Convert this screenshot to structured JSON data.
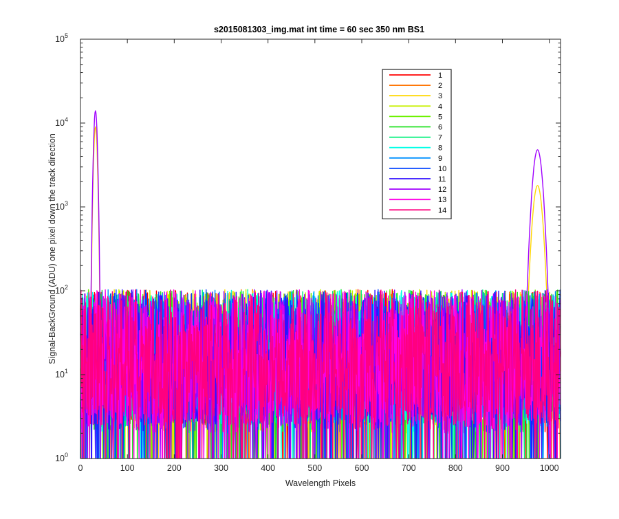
{
  "figure": {
    "background": "#ffffff"
  },
  "chart_data": {
    "type": "line",
    "title": "s2015081303_img.mat int time = 60 sec  350 nm BS1",
    "xlabel": "Wavelength Pixels",
    "ylabel": "Signal-BackGround (ADU) one pixel down the track direction",
    "xlim": [
      0,
      1024
    ],
    "ylim": [
      1,
      100000
    ],
    "yscale": "log",
    "x_ticks": [
      0,
      100,
      200,
      300,
      400,
      500,
      600,
      700,
      800,
      900,
      1000
    ],
    "y_ticks": [
      {
        "value": 1,
        "base": "10",
        "exp": "0"
      },
      {
        "value": 10,
        "base": "10",
        "exp": "1"
      },
      {
        "value": 100,
        "base": "10",
        "exp": "2"
      },
      {
        "value": 1000,
        "base": "10",
        "exp": "3"
      },
      {
        "value": 10000,
        "base": "10",
        "exp": "4"
      },
      {
        "value": 100000,
        "base": "10",
        "exp": "5"
      }
    ],
    "grid": false,
    "legend_position": "top-right",
    "noise_floor_range": [
      2,
      100
    ],
    "peaks": [
      {
        "name": "left line",
        "x_center": 32,
        "width": 3,
        "value_series_12": 14000,
        "value_series_3": 9000
      },
      {
        "name": "right line",
        "x_center": 975,
        "width": 8,
        "value_series_12": 4800,
        "value_series_3": 1800
      }
    ],
    "series": [
      {
        "name": "1",
        "color": "#ff0000"
      },
      {
        "name": "2",
        "color": "#ff7400"
      },
      {
        "name": "3",
        "color": "#ffd700"
      },
      {
        "name": "4",
        "color": "#c8f000"
      },
      {
        "name": "5",
        "color": "#6cf200"
      },
      {
        "name": "6",
        "color": "#20e020"
      },
      {
        "name": "7",
        "color": "#00f07a"
      },
      {
        "name": "8",
        "color": "#00ffe6"
      },
      {
        "name": "9",
        "color": "#0090ff"
      },
      {
        "name": "10",
        "color": "#0040ff"
      },
      {
        "name": "11",
        "color": "#3010ff"
      },
      {
        "name": "12",
        "color": "#a000ff"
      },
      {
        "name": "13",
        "color": "#ff00e6"
      },
      {
        "name": "14",
        "color": "#ff0080"
      }
    ]
  }
}
